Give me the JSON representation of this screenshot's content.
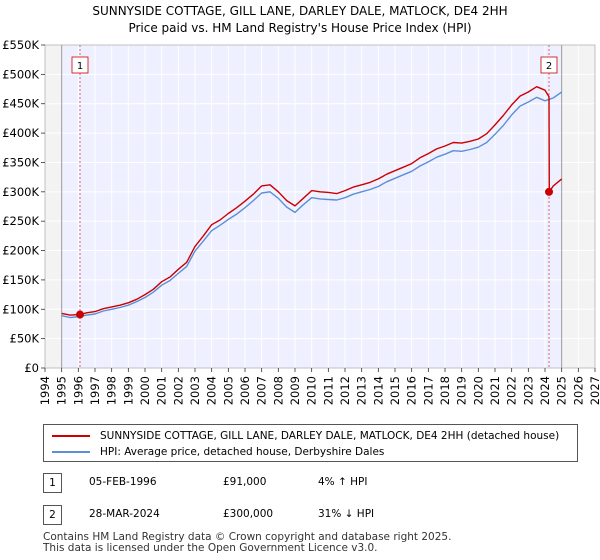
{
  "chart_data": {
    "type": "line",
    "title_lines": [
      "SUNNYSIDE COTTAGE, GILL LANE, DARLEY DALE, MATLOCK, DE4 2HH",
      "Price paid vs. HM Land Registry's House Price Index (HPI)"
    ],
    "xlim": [
      1994,
      2027
    ],
    "ylim": [
      0,
      550000
    ],
    "x_ticks": [
      "1994",
      "1995",
      "1996",
      "1997",
      "1998",
      "1999",
      "2000",
      "2001",
      "2002",
      "2003",
      "2004",
      "2005",
      "2006",
      "2007",
      "2008",
      "2009",
      "2010",
      "2011",
      "2012",
      "2013",
      "2014",
      "2015",
      "2016",
      "2017",
      "2018",
      "2019",
      "2020",
      "2021",
      "2022",
      "2023",
      "2024",
      "2025",
      "2026",
      "2027"
    ],
    "y_ticks": [
      {
        "value": 0,
        "label": "£0"
      },
      {
        "value": 50000,
        "label": "£50K"
      },
      {
        "value": 100000,
        "label": "£100K"
      },
      {
        "value": 150000,
        "label": "£150K"
      },
      {
        "value": 200000,
        "label": "£200K"
      },
      {
        "value": 250000,
        "label": "£250K"
      },
      {
        "value": 300000,
        "label": "£300K"
      },
      {
        "value": 350000,
        "label": "£350K"
      },
      {
        "value": 400000,
        "label": "£400K"
      },
      {
        "value": 450000,
        "label": "£450K"
      },
      {
        "value": 500000,
        "label": "£500K"
      },
      {
        "value": 550000,
        "label": "£550K"
      }
    ],
    "data_range": [
      1995.0,
      2025.0
    ],
    "series": [
      {
        "name": "SUNNYSIDE COTTAGE, GILL LANE, DARLEY DALE, MATLOCK, DE4 2HH (detached house)",
        "color": "#cc0000",
        "x": [
          1995.0,
          1995.5,
          1996.1,
          1996.5,
          1997.0,
          1997.5,
          1998.0,
          1998.5,
          1999.0,
          1999.5,
          2000.0,
          2000.5,
          2001.0,
          2001.5,
          2002.0,
          2002.5,
          2003.0,
          2003.5,
          2004.0,
          2004.5,
          2005.0,
          2005.5,
          2006.0,
          2006.5,
          2007.0,
          2007.5,
          2008.0,
          2008.5,
          2009.0,
          2009.5,
          2010.0,
          2010.5,
          2011.0,
          2011.5,
          2012.0,
          2012.5,
          2013.0,
          2013.5,
          2014.0,
          2014.5,
          2015.0,
          2015.5,
          2016.0,
          2016.5,
          2017.0,
          2017.5,
          2018.0,
          2018.5,
          2019.0,
          2019.5,
          2020.0,
          2020.5,
          2021.0,
          2021.5,
          2022.0,
          2022.5,
          2023.0,
          2023.5,
          2024.0,
          2024.24,
          2024.26,
          2024.5,
          2025.0
        ],
        "values": [
          93000,
          90000,
          91000,
          94000,
          96000,
          101000,
          104000,
          107000,
          111000,
          117000,
          125000,
          134000,
          147000,
          155000,
          168000,
          180000,
          207000,
          225000,
          244000,
          252000,
          263000,
          273000,
          284000,
          296000,
          310000,
          312000,
          300000,
          285000,
          276000,
          289000,
          302000,
          300000,
          299000,
          297000,
          302000,
          308000,
          312000,
          316000,
          322000,
          330000,
          336000,
          342000,
          348000,
          358000,
          365000,
          373000,
          378000,
          384000,
          383000,
          386000,
          390000,
          399000,
          414000,
          430000,
          448000,
          463000,
          470000,
          479000,
          473000,
          462000,
          300000,
          310000,
          322000
        ]
      },
      {
        "name": "HPI: Average price, detached house, Derbyshire Dales",
        "color": "#5b8fd6",
        "x": [
          1995.0,
          1995.5,
          1996.1,
          1996.5,
          1997.0,
          1997.5,
          1998.0,
          1998.5,
          1999.0,
          1999.5,
          2000.0,
          2000.5,
          2001.0,
          2001.5,
          2002.0,
          2002.5,
          2003.0,
          2003.5,
          2004.0,
          2004.5,
          2005.0,
          2005.5,
          2006.0,
          2006.5,
          2007.0,
          2007.5,
          2008.0,
          2008.5,
          2009.0,
          2009.5,
          2010.0,
          2010.5,
          2011.0,
          2011.5,
          2012.0,
          2012.5,
          2013.0,
          2013.5,
          2014.0,
          2014.5,
          2015.0,
          2015.5,
          2016.0,
          2016.5,
          2017.0,
          2017.5,
          2018.0,
          2018.5,
          2019.0,
          2019.5,
          2020.0,
          2020.5,
          2021.0,
          2021.5,
          2022.0,
          2022.5,
          2023.0,
          2023.5,
          2024.0,
          2024.5,
          2025.0
        ],
        "values": [
          89000,
          86000,
          87500,
          90000,
          92000,
          97000,
          100000,
          103000,
          107000,
          113000,
          120000,
          129000,
          141000,
          149000,
          161000,
          173000,
          199000,
          216000,
          234000,
          243000,
          253000,
          262000,
          273000,
          285000,
          298000,
          300000,
          289000,
          274000,
          265000,
          278000,
          290000,
          288000,
          287000,
          286000,
          290000,
          296000,
          300000,
          304000,
          309000,
          317000,
          323000,
          329000,
          335000,
          344000,
          351000,
          359000,
          364000,
          370000,
          369000,
          372000,
          376000,
          384000,
          398000,
          413000,
          431000,
          446000,
          453000,
          461000,
          455000,
          460000,
          470000
        ]
      }
    ],
    "markers": [
      {
        "label": "1",
        "x": 1996.1,
        "value": 91000
      },
      {
        "label": "2",
        "x": 2024.24,
        "value": 300000
      }
    ]
  },
  "legend": {
    "items": [
      {
        "label": "SUNNYSIDE COTTAGE, GILL LANE, DARLEY DALE, MATLOCK, DE4 2HH (detached house)",
        "color": "#cc0000"
      },
      {
        "label": "HPI: Average price, detached house, Derbyshire Dales",
        "color": "#5b8fd6"
      }
    ]
  },
  "transactions": [
    {
      "num": "1",
      "date": "05-FEB-1996",
      "price": "£91,000",
      "hpi": "4% ↑ HPI"
    },
    {
      "num": "2",
      "date": "28-MAR-2024",
      "price": "£300,000",
      "hpi": "31% ↓ HPI"
    }
  ],
  "footer": {
    "line1": "Contains HM Land Registry data © Crown copyright and database right 2025.",
    "line2": "This data is licensed under the Open Government Licence v3.0."
  }
}
